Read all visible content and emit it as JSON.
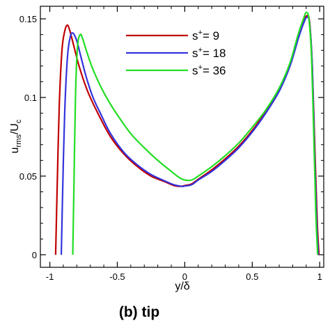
{
  "chart_data": {
    "type": "line",
    "xlabel": "y/δ",
    "ylabel": {
      "main": "u",
      "sub": "rms",
      "sep": "/U",
      "sub2": "c"
    },
    "xlim": [
      -1.07,
      1.03
    ],
    "ylim": [
      -0.008,
      0.158
    ],
    "xticks": [
      -1,
      -0.5,
      0,
      0.5,
      1
    ],
    "xtick_labels": [
      "-1",
      "-0.5",
      "0",
      "0.5",
      "1"
    ],
    "yticks": [
      0,
      0.05,
      0.1,
      0.15
    ],
    "ytick_labels": [
      "0",
      "0.05",
      "0.1",
      "0.15"
    ],
    "grid": false,
    "legend_position": "top-right",
    "caption": "(b) tip",
    "series": [
      {
        "name": "9",
        "legend_prefix": "s",
        "legend_sup": "+",
        "legend_eq": "= ",
        "color": "#c00000",
        "x": [
          -0.957,
          -0.945,
          -0.93,
          -0.91,
          -0.89,
          -0.87,
          -0.85,
          -0.82,
          -0.78,
          -0.72,
          -0.65,
          -0.55,
          -0.45,
          -0.35,
          -0.25,
          -0.15,
          -0.08,
          -0.03,
          0.0,
          0.05,
          0.1,
          0.2,
          0.3,
          0.4,
          0.5,
          0.6,
          0.7,
          0.78,
          0.84,
          0.88,
          0.905,
          0.925,
          0.945,
          0.965,
          0.982,
          0.995
        ],
        "y": [
          0.0,
          0.045,
          0.095,
          0.13,
          0.142,
          0.146,
          0.142,
          0.132,
          0.119,
          0.104,
          0.091,
          0.075,
          0.064,
          0.056,
          0.05,
          0.0465,
          0.044,
          0.0435,
          0.044,
          0.045,
          0.048,
          0.054,
          0.061,
          0.069,
          0.079,
          0.091,
          0.105,
          0.121,
          0.138,
          0.148,
          0.152,
          0.148,
          0.12,
          0.065,
          0.02,
          0.0
        ]
      },
      {
        "name": "18",
        "legend_prefix": "s",
        "legend_sup": "+",
        "legend_eq": "= ",
        "color": "#3333dd",
        "x": [
          -0.915,
          -0.905,
          -0.89,
          -0.87,
          -0.85,
          -0.83,
          -0.8,
          -0.77,
          -0.73,
          -0.68,
          -0.62,
          -0.55,
          -0.45,
          -0.35,
          -0.25,
          -0.15,
          -0.08,
          -0.02,
          0.0,
          0.05,
          0.1,
          0.2,
          0.3,
          0.4,
          0.5,
          0.6,
          0.7,
          0.78,
          0.84,
          0.88,
          0.905,
          0.925,
          0.945,
          0.962,
          0.978,
          0.99
        ],
        "y": [
          0.0,
          0.04,
          0.09,
          0.125,
          0.138,
          0.141,
          0.136,
          0.126,
          0.113,
          0.1,
          0.089,
          0.077,
          0.065,
          0.057,
          0.051,
          0.047,
          0.0445,
          0.0435,
          0.0437,
          0.0445,
          0.0475,
          0.053,
          0.06,
          0.068,
          0.078,
          0.09,
          0.104,
          0.12,
          0.137,
          0.147,
          0.151,
          0.147,
          0.12,
          0.065,
          0.02,
          0.0
        ]
      },
      {
        "name": "36",
        "legend_prefix": "s",
        "legend_sup": "+",
        "legend_eq": "= ",
        "color": "#22dd22",
        "x": [
          -0.83,
          -0.822,
          -0.81,
          -0.795,
          -0.775,
          -0.755,
          -0.73,
          -0.69,
          -0.64,
          -0.58,
          -0.5,
          -0.4,
          -0.3,
          -0.2,
          -0.1,
          -0.04,
          0.0,
          0.05,
          0.1,
          0.2,
          0.3,
          0.4,
          0.5,
          0.6,
          0.7,
          0.78,
          0.84,
          0.88,
          0.9,
          0.92,
          0.94,
          0.958,
          0.972,
          0.985
        ],
        "y": [
          0.0,
          0.04,
          0.1,
          0.132,
          0.14,
          0.137,
          0.13,
          0.12,
          0.11,
          0.1,
          0.089,
          0.077,
          0.068,
          0.06,
          0.053,
          0.049,
          0.0475,
          0.0475,
          0.05,
          0.056,
          0.063,
          0.071,
          0.081,
          0.092,
          0.106,
          0.122,
          0.14,
          0.15,
          0.154,
          0.15,
          0.125,
          0.07,
          0.025,
          0.0
        ]
      }
    ]
  }
}
